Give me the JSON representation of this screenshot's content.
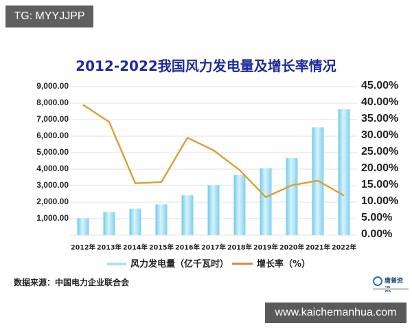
{
  "overlay": {
    "tag_label": "TG: MYYJJPP",
    "site_label": "www.kaichemanhua.com"
  },
  "title": "2012-2022我国风力发电量及增长率情况",
  "legend": {
    "bar_label": "风力发电量（亿千瓦时）",
    "line_label": "增长率（%）"
  },
  "source": "数据来源：中国电力企业联合会",
  "logo": {
    "name": "唐普资讯"
  },
  "axes": {
    "left_ticks": [
      "9,000.00",
      "8,000.00",
      "7,000.00",
      "6,000.00",
      "5,000.00",
      "4,000.00",
      "3,000.00",
      "2,000.00",
      "1,000.00"
    ],
    "right_ticks": [
      "45.00%",
      "40.00%",
      "35.00%",
      "30.00%",
      "25.00%",
      "20.00%",
      "15.00%",
      "10.00%",
      "5.00%",
      "0.00%"
    ]
  },
  "colors": {
    "title": "#1f2b9c",
    "bar": "#8fd8f0",
    "line": "#d9a23a",
    "grid": "#ececec"
  },
  "chart_data": {
    "type": "bar+line",
    "title": "2012-2022我国风力发电量及增长率情况",
    "categories": [
      "2012年",
      "2013年",
      "2014年",
      "2015年",
      "2016年",
      "2017年",
      "2018年",
      "2019年",
      "2020年",
      "2021年",
      "2022年"
    ],
    "series": [
      {
        "name": "风力发电量（亿千瓦时）",
        "type": "bar",
        "axis": "left",
        "values": [
          1030,
          1400,
          1600,
          1860,
          2410,
          3030,
          3660,
          4060,
          4670,
          6530,
          7630
        ]
      },
      {
        "name": "增长率（%）",
        "type": "line",
        "axis": "right",
        "values": [
          39.5,
          34.3,
          15.7,
          16.1,
          29.5,
          25.7,
          19.7,
          11.5,
          15.1,
          16.5,
          12.0
        ]
      }
    ],
    "ylabel_left": "",
    "ylabel_right": "",
    "ylim_left": [
      0,
      9000
    ],
    "ylim_right": [
      0,
      45
    ],
    "grid": true,
    "legend_position": "bottom"
  }
}
